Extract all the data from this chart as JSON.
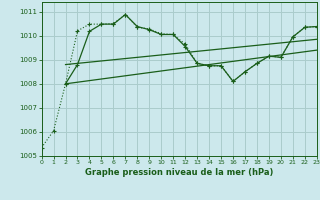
{
  "xlabel": "Graphe pression niveau de la mer (hPa)",
  "bg_color": "#cce8ec",
  "grid_color": "#aacccc",
  "line_color": "#1a5e1a",
  "xlim": [
    0,
    23
  ],
  "ylim": [
    1005.0,
    1011.4
  ],
  "yticks": [
    1005,
    1006,
    1007,
    1008,
    1009,
    1010,
    1011
  ],
  "xticks": [
    0,
    1,
    2,
    3,
    4,
    5,
    6,
    7,
    8,
    9,
    10,
    11,
    12,
    13,
    14,
    15,
    16,
    17,
    18,
    19,
    20,
    21,
    22,
    23
  ],
  "s1x": [
    0,
    1,
    2,
    3,
    4,
    5,
    6,
    7,
    8,
    9,
    10,
    11,
    12,
    13,
    14,
    15,
    16,
    17,
    18,
    19,
    20,
    21,
    22,
    23
  ],
  "s1y": [
    1005.35,
    1006.05,
    1008.0,
    1010.2,
    1010.48,
    1010.48,
    1010.5,
    1010.88,
    1010.35,
    1010.28,
    1010.08,
    1010.05,
    1009.65,
    1008.85,
    1008.75,
    1008.75,
    1008.1,
    1008.5,
    1008.85,
    1009.15,
    1009.1,
    1009.95,
    1010.35,
    1010.38
  ],
  "s2x": [
    2,
    3,
    4,
    5,
    6,
    7,
    8,
    9,
    10,
    11,
    12,
    13,
    14,
    15,
    16,
    17,
    18,
    19,
    20,
    21,
    22,
    23
  ],
  "s2y": [
    1008.0,
    1008.8,
    1010.18,
    1010.48,
    1010.48,
    1010.88,
    1010.38,
    1010.25,
    1010.05,
    1010.05,
    1009.55,
    1008.85,
    1008.75,
    1008.75,
    1008.1,
    1008.5,
    1008.85,
    1009.15,
    1009.1,
    1009.95,
    1010.35,
    1010.38
  ],
  "trend1_x": [
    2,
    23
  ],
  "trend1_y": [
    1008.8,
    1009.85
  ],
  "trend2_x": [
    2,
    23
  ],
  "trend2_y": [
    1008.0,
    1009.4
  ]
}
